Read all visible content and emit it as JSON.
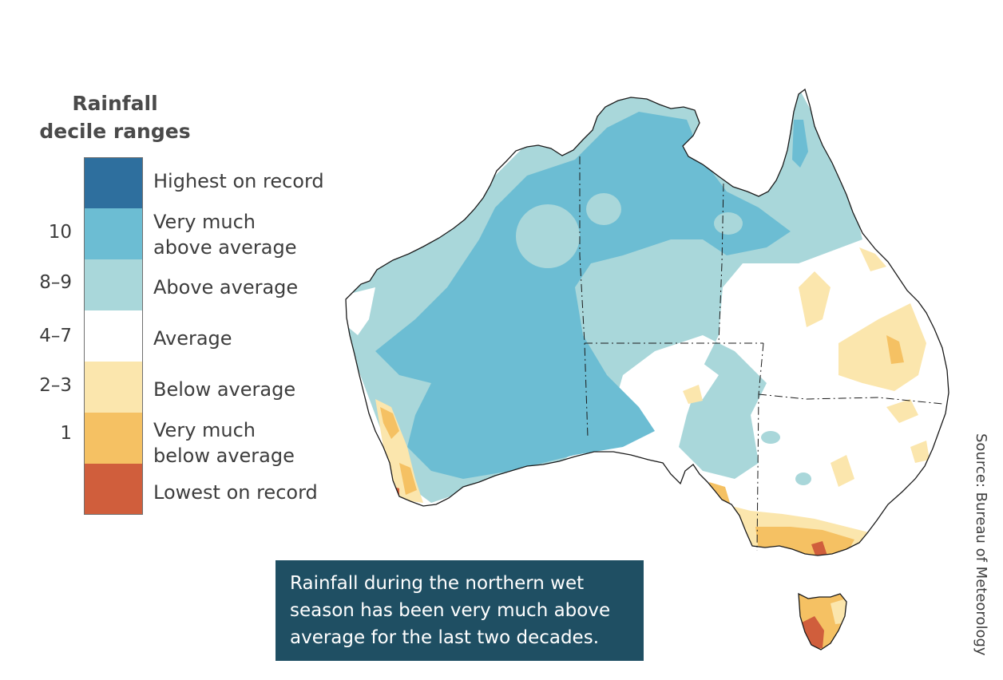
{
  "legend": {
    "title_lines": [
      "Rainfall",
      "decile ranges"
    ],
    "categories": [
      {
        "lines": [
          "Highest on record"
        ],
        "decile": "",
        "color": "#2e6f9e"
      },
      {
        "lines": [
          "Very much",
          "above average"
        ],
        "decile": "10",
        "color": "#6cbdd3"
      },
      {
        "lines": [
          "Above average"
        ],
        "decile": "8–9",
        "color": "#a9d7da"
      },
      {
        "lines": [
          "Average"
        ],
        "decile": "4–7",
        "color": "#ffffff"
      },
      {
        "lines": [
          "Below average"
        ],
        "decile": "2–3",
        "color": "#fbe6ad"
      },
      {
        "lines": [
          "Very much",
          "below average"
        ],
        "decile": "1",
        "color": "#f5c163"
      },
      {
        "lines": [
          "Lowest on record"
        ],
        "decile": "",
        "color": "#d05e3c"
      }
    ]
  },
  "caption": {
    "lines": [
      "Rainfall during the northern wet",
      "season has been very much above",
      "average for the last two decades."
    ]
  },
  "source": "Source: Bureau of Meteorology",
  "colors": {
    "caption_bg": "#1f4f63",
    "outline": "#1a1a1a"
  }
}
